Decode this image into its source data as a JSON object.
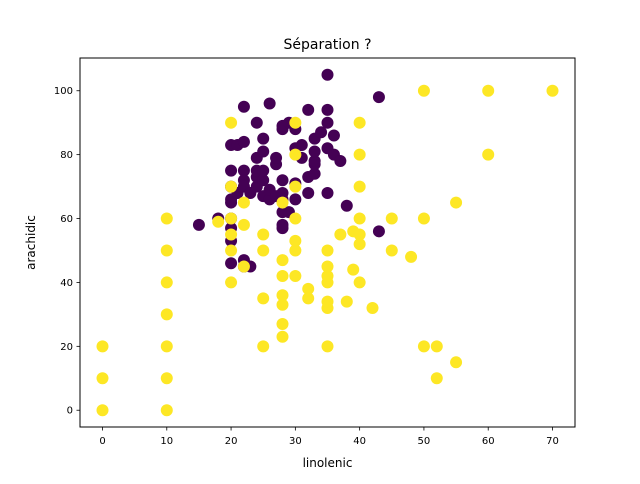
{
  "chart_data": {
    "type": "scatter",
    "title": "Séparation ?",
    "xlabel": "linolenic",
    "ylabel": "arachidic",
    "xlim": [
      -3.5,
      73.5
    ],
    "ylim": [
      -5.25,
      110.25
    ],
    "xticks": [
      0,
      10,
      20,
      30,
      40,
      50,
      60,
      70
    ],
    "yticks": [
      0,
      20,
      40,
      60,
      80,
      100
    ],
    "grid": false,
    "colors": {
      "class_0": "#440154",
      "class_1": "#fde725"
    },
    "series": [
      {
        "color": "#440154",
        "points": [
          [
            15,
            58
          ],
          [
            18,
            60
          ],
          [
            20,
            53
          ],
          [
            20,
            57
          ],
          [
            20,
            60
          ],
          [
            20,
            65
          ],
          [
            20,
            66
          ],
          [
            20,
            70
          ],
          [
            20,
            75
          ],
          [
            20,
            83
          ],
          [
            20,
            46
          ],
          [
            21,
            68
          ],
          [
            21,
            83
          ],
          [
            22,
            45
          ],
          [
            22,
            47
          ],
          [
            22,
            84
          ],
          [
            22,
            95
          ],
          [
            22,
            75
          ],
          [
            22,
            72
          ],
          [
            22,
            70
          ],
          [
            23,
            68
          ],
          [
            23,
            45
          ],
          [
            24,
            70
          ],
          [
            24,
            73
          ],
          [
            24,
            75
          ],
          [
            24,
            79
          ],
          [
            24,
            90
          ],
          [
            25,
            67
          ],
          [
            25,
            72
          ],
          [
            25,
            75
          ],
          [
            25,
            81
          ],
          [
            25,
            85
          ],
          [
            26,
            66
          ],
          [
            26,
            69
          ],
          [
            26,
            96
          ],
          [
            27,
            67
          ],
          [
            27,
            77
          ],
          [
            27,
            79
          ],
          [
            28,
            57
          ],
          [
            28,
            58
          ],
          [
            28,
            62
          ],
          [
            28,
            66
          ],
          [
            28,
            68
          ],
          [
            28,
            72
          ],
          [
            28,
            88
          ],
          [
            28,
            89
          ],
          [
            29,
            62
          ],
          [
            29,
            90
          ],
          [
            30,
            66
          ],
          [
            30,
            71
          ],
          [
            30,
            82
          ],
          [
            30,
            88
          ],
          [
            31,
            79
          ],
          [
            31,
            83
          ],
          [
            32,
            68
          ],
          [
            32,
            73
          ],
          [
            32,
            94
          ],
          [
            33,
            74
          ],
          [
            33,
            77
          ],
          [
            33,
            78
          ],
          [
            33,
            81
          ],
          [
            33,
            85
          ],
          [
            34,
            87
          ],
          [
            35,
            68
          ],
          [
            35,
            82
          ],
          [
            35,
            90
          ],
          [
            35,
            94
          ],
          [
            35,
            105
          ],
          [
            36,
            80
          ],
          [
            36,
            86
          ],
          [
            37,
            78
          ],
          [
            38,
            64
          ],
          [
            43,
            56
          ],
          [
            43,
            98
          ]
        ]
      },
      {
        "color": "#fde725",
        "points": [
          [
            0,
            0
          ],
          [
            0,
            10
          ],
          [
            0,
            20
          ],
          [
            10,
            0
          ],
          [
            10,
            10
          ],
          [
            10,
            20
          ],
          [
            10,
            30
          ],
          [
            10,
            40
          ],
          [
            10,
            50
          ],
          [
            10,
            60
          ],
          [
            20,
            40
          ],
          [
            20,
            50
          ],
          [
            20,
            55
          ],
          [
            20,
            60
          ],
          [
            20,
            70
          ],
          [
            20,
            90
          ],
          [
            18,
            59
          ],
          [
            22,
            45
          ],
          [
            22,
            58
          ],
          [
            22,
            65
          ],
          [
            25,
            20
          ],
          [
            25,
            35
          ],
          [
            25,
            50
          ],
          [
            25,
            55
          ],
          [
            28,
            23
          ],
          [
            28,
            27
          ],
          [
            28,
            33
          ],
          [
            28,
            36
          ],
          [
            28,
            42
          ],
          [
            28,
            47
          ],
          [
            28,
            65
          ],
          [
            30,
            42
          ],
          [
            30,
            50
          ],
          [
            30,
            53
          ],
          [
            30,
            60
          ],
          [
            30,
            70
          ],
          [
            30,
            80
          ],
          [
            30,
            90
          ],
          [
            32,
            35
          ],
          [
            32,
            38
          ],
          [
            35,
            20
          ],
          [
            35,
            32
          ],
          [
            35,
            34
          ],
          [
            35,
            40
          ],
          [
            35,
            42
          ],
          [
            35,
            45
          ],
          [
            35,
            50
          ],
          [
            37,
            55
          ],
          [
            38,
            34
          ],
          [
            39,
            44
          ],
          [
            39,
            56
          ],
          [
            40,
            40
          ],
          [
            40,
            52
          ],
          [
            40,
            55
          ],
          [
            40,
            60
          ],
          [
            40,
            70
          ],
          [
            40,
            80
          ],
          [
            40,
            90
          ],
          [
            42,
            32
          ],
          [
            45,
            50
          ],
          [
            45,
            60
          ],
          [
            48,
            48
          ],
          [
            50,
            20
          ],
          [
            50,
            60
          ],
          [
            50,
            100
          ],
          [
            52,
            10
          ],
          [
            52,
            20
          ],
          [
            55,
            15
          ],
          [
            55,
            65
          ],
          [
            60,
            80
          ],
          [
            60,
            100
          ],
          [
            70,
            100
          ]
        ]
      }
    ]
  }
}
